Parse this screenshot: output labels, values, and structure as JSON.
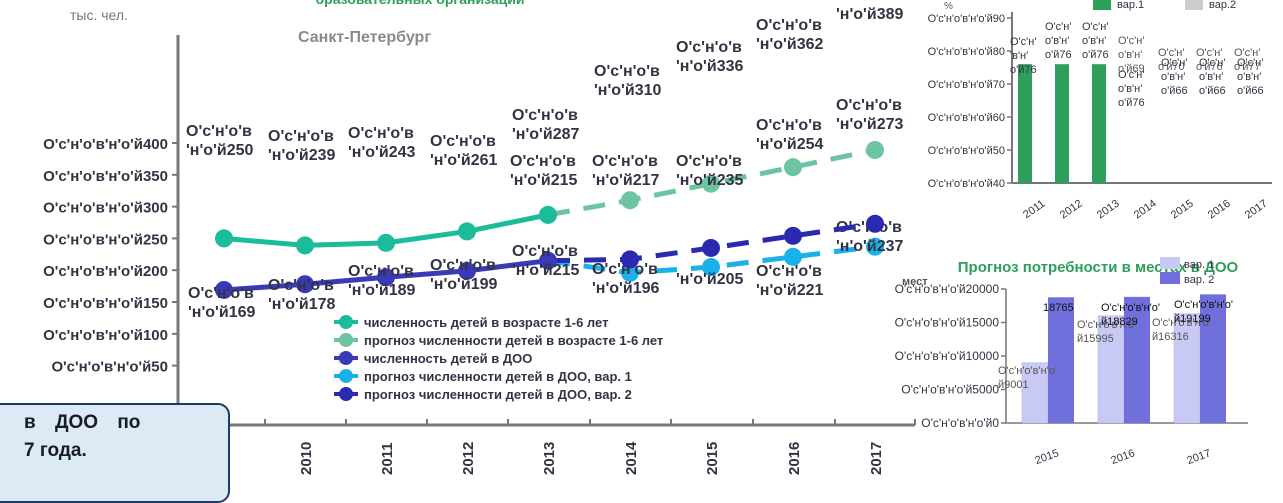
{
  "colors": {
    "children_actual": "#1abc9c",
    "children_forecast": "#6dc4a0",
    "doo_actual": "#3a3ab8",
    "doo_forecast_v1": "#1ab0e8",
    "doo_forecast_v2": "#2a2ab0",
    "bar_green": "#2e9e5b",
    "bar_light": "#c9c9f5",
    "bar_dark": "#7070dd",
    "axis": "#777777",
    "label_dark": "#333344"
  },
  "title_fragment": "бразовательных организаций",
  "note_box": {
    "line1": "в ДОО по",
    "line2": "7 года.",
    "line3": ""
  },
  "chart_data": [
    {
      "type": "line",
      "title": "",
      "subtitle": "Санкт-Петербург",
      "ylabel": "тыс. чел.",
      "ytick_labels": [
        "O'c'н'o'в'н'o'й400",
        "O'c'н'o'в'н'o'й350",
        "O'c'н'o'в'н'o'й300",
        "O'c'н'o'в'н'o'й250",
        "O'c'н'o'в'н'o'й200",
        "O'c'н'o'в'н'o'й150",
        "O'c'н'o'в'н'o'й100",
        "O'c'н'o'в'н'o'й50"
      ],
      "ytick_values": [
        400,
        350,
        300,
        250,
        200,
        150,
        100,
        50
      ],
      "ylim": [
        0,
        420
      ],
      "x": [
        "2010",
        "2011",
        "2012",
        "2013",
        "2014",
        "2015",
        "2016",
        "2017"
      ],
      "legend_position": "bottom-center",
      "series": [
        {
          "name": "численность детей в возрасте 1-6 лет",
          "style": "solid",
          "x": [
            "2009",
            "2010",
            "2011",
            "2012",
            "2013"
          ],
          "values": [
            250,
            239,
            243,
            261,
            287
          ],
          "labels": [
            [
              "O'c'н'o'в",
              "'н'o'й250"
            ],
            [
              "O'c'н'o'в",
              "'н'o'й239"
            ],
            [
              "O'c'н'o'в",
              "'н'o'й243"
            ],
            [
              "O'c'н'o'в",
              "'н'o'й261"
            ],
            [
              "O'c'н'o'в",
              "'н'o'й287"
            ]
          ]
        },
        {
          "name": "прогноз численности детей в возрасте 1-6 лет",
          "style": "dashed",
          "x": [
            "2013",
            "2014",
            "2015",
            "2016",
            "2017"
          ],
          "values": [
            287,
            310,
            336,
            362,
            389
          ],
          "labels": [
            null,
            [
              "O'c'н'o'в",
              "'н'o'й310"
            ],
            [
              "O'c'н'o'в",
              "'н'o'й336"
            ],
            [
              "O'c'н'o'в",
              "'н'o'й362"
            ],
            [
              "O'c'н'o'в",
              "'н'o'й389"
            ]
          ]
        },
        {
          "name": "численность детей в ДОО",
          "style": "solid",
          "x": [
            "2009",
            "2010",
            "2011",
            "2012",
            "2013"
          ],
          "values": [
            169,
            178,
            189,
            199,
            215
          ],
          "labels": [
            [
              "O'c'н'o'в",
              "'н'o'й169"
            ],
            [
              "O'c'н'o'в",
              "'н'o'й178"
            ],
            [
              "O'c'н'o'в",
              "'н'o'й189"
            ],
            [
              "O'c'н'o'в",
              "'н'o'й199"
            ],
            [
              "O'c'н'o'в",
              "'н'o'й215"
            ]
          ]
        },
        {
          "name": "прогноз численности детей в ДОО, вар. 1",
          "style": "dashed",
          "x": [
            "2013",
            "2014",
            "2015",
            "2016",
            "2017"
          ],
          "values": [
            215,
            196,
            205,
            221,
            237
          ],
          "labels": [
            null,
            [
              "O'c'н'o'в",
              "'н'o'й196"
            ],
            [
              "'н'o'й205"
            ],
            [
              "O'c'н'o'в",
              "'н'o'й221"
            ],
            [
              "O'c'н'o'в",
              "'н'o'й237"
            ]
          ]
        },
        {
          "name": "прогноз численности детей в ДОО, вар. 2",
          "style": "dashed",
          "x": [
            "2013",
            "2014",
            "2015",
            "2016",
            "2017"
          ],
          "values": [
            215,
            217,
            235,
            254,
            273
          ],
          "labels": [
            [
              "O'c'н'o'в",
              "'н'o'й215"
            ],
            [
              "O'c'н'o'в",
              "'н'o'й217"
            ],
            [
              "O'c'н'o'в",
              "'н'o'й235"
            ],
            [
              "O'c'н'o'в",
              "'н'o'й254"
            ],
            [
              "O'c'н'o'в",
              "'н'o'й273"
            ]
          ]
        }
      ]
    },
    {
      "type": "bar",
      "title": "",
      "ylabel": "%",
      "ylim": [
        40,
        90
      ],
      "ytick_labels": [
        "O'c'н'o'в'н'o'й90",
        "O'c'н'o'в'н'o'й80",
        "O'c'н'o'в'н'o'й70",
        "O'c'н'o'в'н'o'й60",
        "O'c'н'o'в'н'o'й50",
        "O'c'н'o'в'н'o'й40"
      ],
      "ytick_values": [
        90,
        80,
        70,
        60,
        50,
        40
      ],
      "categories": [
        "2011",
        "2012",
        "2013",
        "2014",
        "2015",
        "2016",
        "2017"
      ],
      "legend_position": "top-right",
      "series": [
        {
          "name": "вар.1",
          "color": "#2e9e5b",
          "values": [
            76,
            76,
            76,
            76,
            66,
            66,
            66
          ],
          "labels": [
            [
              "O'c'н'",
              "'в'н'",
              "o'й76"
            ],
            [
              "O'c'н'",
              "o'в'н'",
              "o'й76"
            ],
            [
              "O'c'н'",
              "o'в'н'",
              "o'й76"
            ],
            [
              "O'c'н'",
              "o'в'н'",
              "o'й76"
            ],
            [
              "O'c'н'",
              "o'в'н'",
              "o'й66"
            ],
            [
              "O'c'н'",
              "o'в'н'",
              "o'й66"
            ],
            [
              "O'c'н'",
              "o'в'н'",
              "o'й66"
            ]
          ]
        },
        {
          "name": "вар.2",
          "color": "#cccccc",
          "values": [
            null,
            null,
            null,
            69,
            70,
            76,
            77
          ],
          "labels": [
            null,
            null,
            null,
            [
              "O'c'н'",
              "o'в'н'",
              "o'й69"
            ],
            [
              "O'c'н'",
              "o'й70"
            ],
            [
              "O'c'н'",
              "o'й76"
            ],
            [
              "O'c'н'",
              "o'й77"
            ]
          ]
        }
      ]
    },
    {
      "type": "bar",
      "title": "Прогноз потребности в местах в ДОО",
      "ylabel": "мест",
      "ylim": [
        0,
        20000
      ],
      "ytick_labels": [
        "O'c'н'o'в'н'o'й20000",
        "O'c'н'o'в'н'o'й15000",
        "O'c'н'o'в'н'o'й10000",
        "O'c'н'o'в'н'o'й5000",
        "O'c'н'o'в'н'o'й0"
      ],
      "ytick_values": [
        20000,
        15000,
        10000,
        5000,
        0
      ],
      "categories": [
        "2015",
        "2016",
        "2017"
      ],
      "legend_position": "top-right",
      "series": [
        {
          "name": "вар. 1",
          "color": "#c9c9f5",
          "values": [
            9001,
            15995,
            16316
          ],
          "labels": [
            [
              "O'c'н'o'в'н'o'",
              "й9001"
            ],
            [
              "O'c'н'o'в'н'o'",
              "й15995"
            ],
            [
              "O'c'н'o'в'н'o'",
              "й16316"
            ]
          ]
        },
        {
          "name": "вар. 2",
          "color": "#7070dd",
          "values": [
            18765,
            18829,
            19199
          ],
          "labels": [
            [
              "18765"
            ],
            [
              "O'c'н'o'в'н'o'",
              "й18829"
            ],
            [
              "O'c'н'o'в'н'o'",
              "й19199"
            ]
          ]
        }
      ]
    }
  ]
}
